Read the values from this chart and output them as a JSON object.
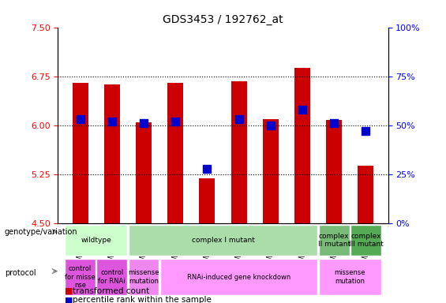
{
  "title": "GDS3453 / 192762_at",
  "samples": [
    "GSM251550",
    "GSM251551",
    "GSM251552",
    "GSM251555",
    "GSM251556",
    "GSM251557",
    "GSM251558",
    "GSM251559",
    "GSM251553",
    "GSM251554"
  ],
  "transformed_count": [
    6.65,
    6.62,
    6.05,
    6.65,
    5.19,
    6.67,
    6.1,
    6.88,
    6.08,
    5.38
  ],
  "percentile_rank": [
    53,
    52,
    51,
    52,
    28,
    53,
    50,
    58,
    51,
    47
  ],
  "ylim_left": [
    4.5,
    7.5
  ],
  "ylim_right": [
    0,
    100
  ],
  "yticks_left": [
    4.5,
    5.25,
    6.0,
    6.75,
    7.5
  ],
  "yticks_right": [
    0,
    25,
    50,
    75,
    100
  ],
  "hlines": [
    5.25,
    6.0,
    6.75
  ],
  "bar_color": "#cc0000",
  "dot_color": "#0000cc",
  "bar_width": 0.5,
  "dot_size": 60,
  "genotype_row": {
    "wildtype": {
      "start": 0,
      "end": 2,
      "color": "#ccffcc",
      "label": "wildtype"
    },
    "complex_I": {
      "start": 2,
      "end": 8,
      "color": "#99ee99",
      "label": "complex I mutant"
    },
    "complex_II": {
      "start": 8,
      "end": 9,
      "color": "#66cc66",
      "label": "complex\nII mutant"
    },
    "complex_III": {
      "start": 9,
      "end": 10,
      "color": "#44aa44",
      "label": "complex\nIII mutant"
    }
  },
  "protocol_row": {
    "ctrl_missense": {
      "start": 0,
      "end": 1,
      "color": "#dd66dd",
      "label": "control\nfor misse\nnse"
    },
    "ctrl_rnai": {
      "start": 1,
      "end": 2,
      "color": "#dd66dd",
      "label": "control\nfor RNAi"
    },
    "missense1": {
      "start": 2,
      "end": 3,
      "color": "#ee99ee",
      "label": "missense\nmutation"
    },
    "rnai": {
      "start": 3,
      "end": 8,
      "color": "#ff99ff",
      "label": "RNAi-induced gene knockdown"
    },
    "missense2": {
      "start": 8,
      "end": 10,
      "color": "#ff99ff",
      "label": "missense\nmutation"
    }
  },
  "legend_items": [
    {
      "label": "transformed count",
      "color": "#cc0000",
      "marker": "s"
    },
    {
      "label": "percentile rank within the sample",
      "color": "#0000cc",
      "marker": "s"
    }
  ]
}
